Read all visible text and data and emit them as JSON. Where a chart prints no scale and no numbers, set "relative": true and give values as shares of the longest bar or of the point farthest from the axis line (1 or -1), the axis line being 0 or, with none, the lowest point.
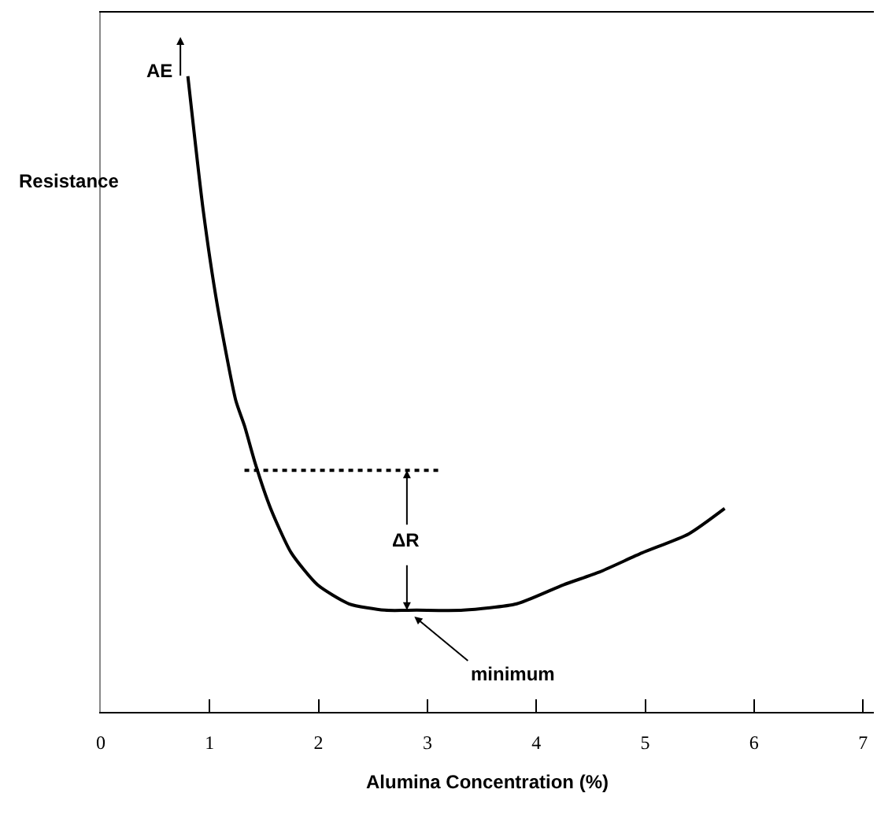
{
  "chart_data": {
    "type": "line",
    "relative": true,
    "xlabel": "Alumina Concentration (%)",
    "ylabel": "Resistance",
    "xlim": [
      0,
      7.1
    ],
    "xticks": [
      0,
      1,
      2,
      3,
      4,
      5,
      6,
      7
    ],
    "marker": "none",
    "series": [
      {
        "color": "#000000",
        "line_style": "solid",
        "x": [
          0.8,
          0.94,
          1.07,
          1.24,
          1.32,
          1.42,
          1.56,
          1.75,
          1.99,
          2.28,
          2.61,
          2.9,
          3.33,
          3.82,
          4.25,
          4.58,
          4.97,
          5.4,
          5.73
        ],
        "values": [
          1.0,
          0.79,
          0.64,
          0.49,
          0.45,
          0.39,
          0.32,
          0.25,
          0.2,
          0.17,
          0.16,
          0.16,
          0.16,
          0.17,
          0.2,
          0.22,
          0.25,
          0.28,
          0.32
        ]
      },
      {
        "color": "#000000",
        "line_style": "dotted",
        "x": [
          1.32,
          3.1
        ],
        "values": [
          0.38,
          0.38
        ]
      }
    ],
    "annotations": [
      "AE",
      "ΔR",
      {
        "text": "minimum",
        "x": 2.88,
        "y": 0.15
      }
    ]
  }
}
